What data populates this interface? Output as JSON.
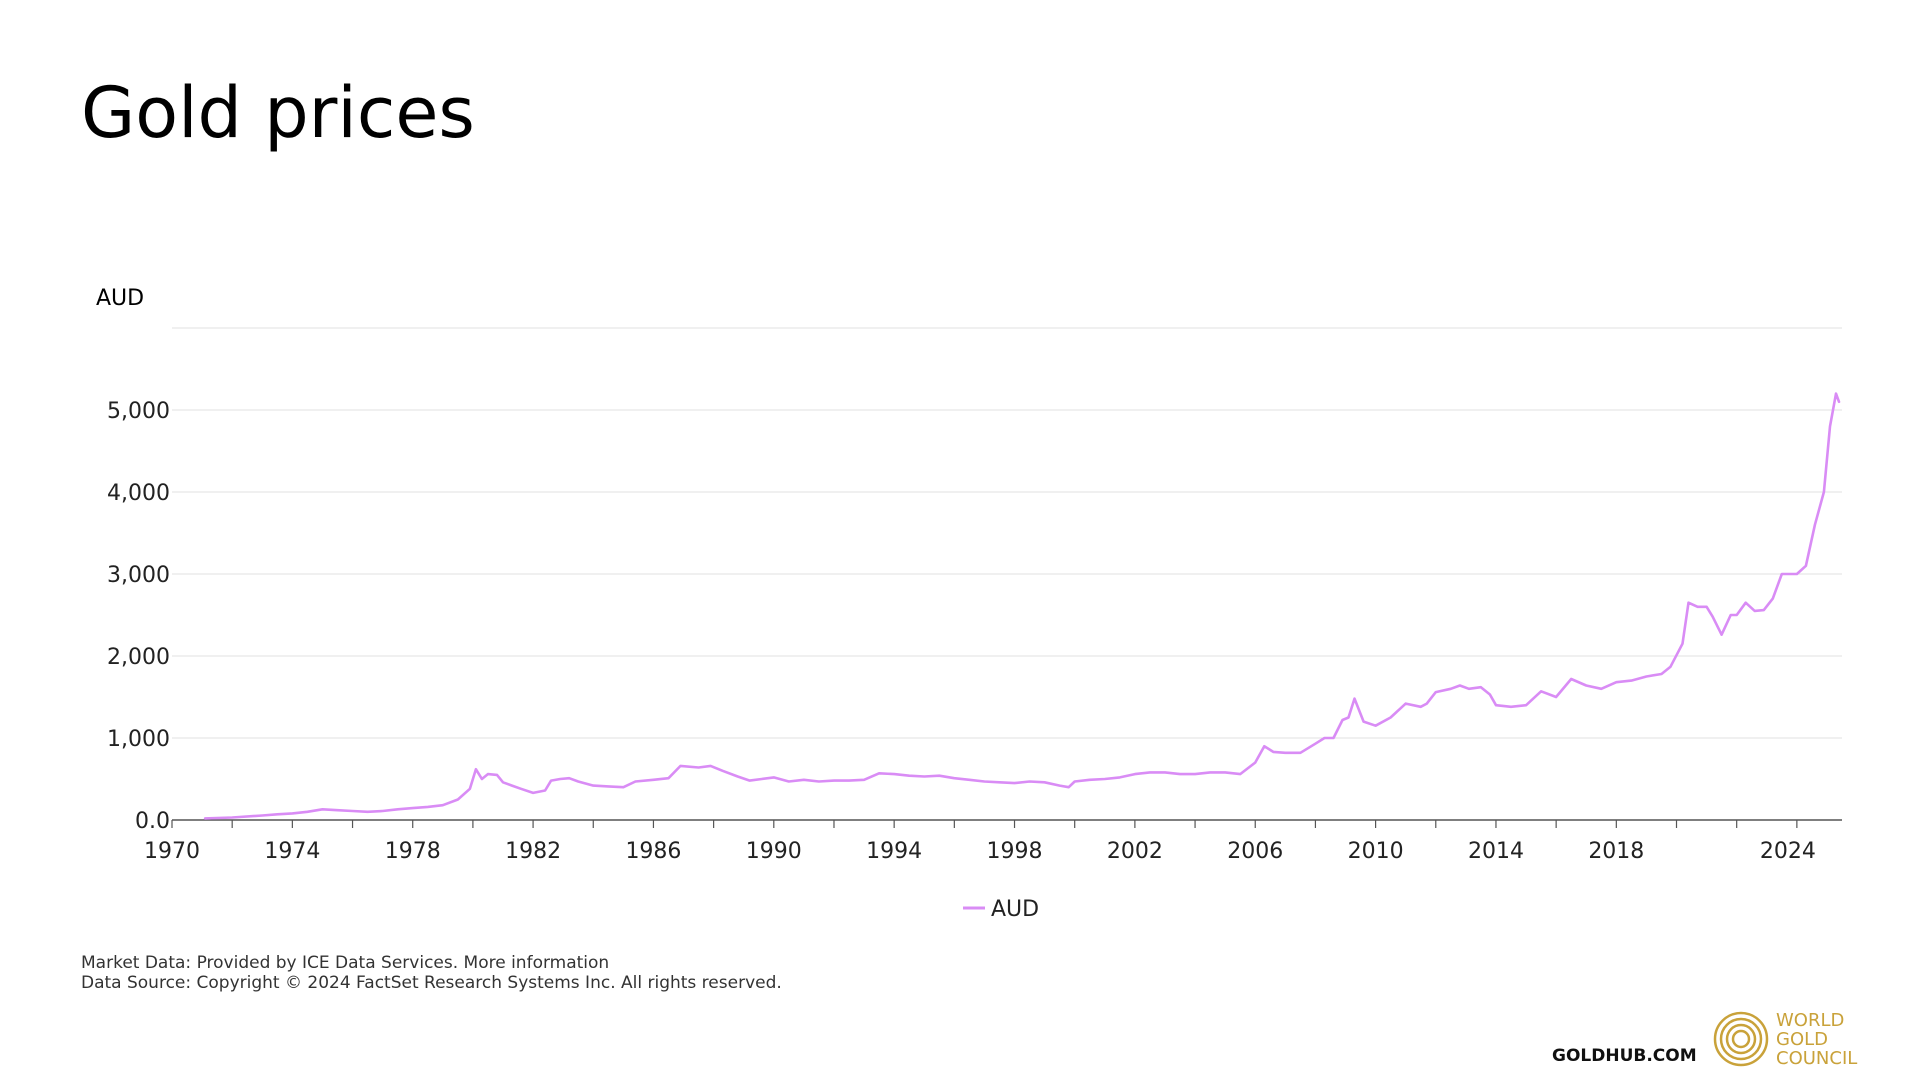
{
  "title": "Gold prices",
  "footer": {
    "line1": "Market Data: Provided by ICE Data Services. More information",
    "line2": "Data Source: Copyright © 2024 FactSet Research Systems Inc. All rights reserved."
  },
  "branding": {
    "site": "GOLDHUB.COM",
    "logo_lines": [
      "WORLD",
      "GOLD",
      "COUNCIL"
    ],
    "logo_color": "#c9a23a"
  },
  "chart_data": {
    "type": "line",
    "unit_label": "AUD",
    "xlim": [
      1970,
      2025.5
    ],
    "ylim": [
      0,
      6000
    ],
    "x_ticks": [
      "1970",
      "1974",
      "1978",
      "1982",
      "1986",
      "1990",
      "1994",
      "1998",
      "2002",
      "2006",
      "2010",
      "2014",
      "2018",
      "2024"
    ],
    "x_tick_values": [
      1970,
      1974,
      1978,
      1982,
      1986,
      1990,
      1994,
      1998,
      2002,
      2006,
      2010,
      2014,
      2018,
      2023.7
    ],
    "y_ticks": [
      "0.0",
      "1,000",
      "2,000",
      "3,000",
      "4,000",
      "5,000"
    ],
    "y_tick_values": [
      0,
      1000,
      2000,
      3000,
      4000,
      5000
    ],
    "grid": true,
    "legend_position": "bottom-center",
    "series": [
      {
        "name": "AUD",
        "color": "#d98cf5",
        "x": [
          1971.1,
          1972,
          1973,
          1973.5,
          1974,
          1974.5,
          1975,
          1975.5,
          1976,
          1976.5,
          1977,
          1977.5,
          1978,
          1978.5,
          1979,
          1979.5,
          1979.9,
          1980.1,
          1980.3,
          1980.5,
          1980.8,
          1981,
          1981.3,
          1981.6,
          1982,
          1982.4,
          1982.6,
          1982.9,
          1983.2,
          1983.5,
          1984,
          1984.5,
          1985,
          1985.4,
          1986,
          1986.5,
          1986.9,
          1987.5,
          1987.9,
          1988.3,
          1988.8,
          1989.2,
          1989.6,
          1990,
          1990.5,
          1991,
          1991.5,
          1992,
          1992.5,
          1993,
          1993.5,
          1994,
          1994.5,
          1995,
          1995.5,
          1996,
          1996.5,
          1997,
          1997.5,
          1998,
          1998.5,
          1999,
          1999.5,
          1999.8,
          2000,
          2000.5,
          2001,
          2001.5,
          2002,
          2002.5,
          2003,
          2003.5,
          2004,
          2004.5,
          2005,
          2005.5,
          2006,
          2006.3,
          2006.6,
          2007,
          2007.5,
          2008,
          2008.3,
          2008.6,
          2008.9,
          2009.1,
          2009.3,
          2009.6,
          2010,
          2010.5,
          2011,
          2011.5,
          2011.7,
          2012,
          2012.5,
          2012.8,
          2013.1,
          2013.5,
          2013.8,
          2014,
          2014.5,
          2015,
          2015.5,
          2016,
          2016.5,
          2017,
          2017.5,
          2018,
          2018.5,
          2019,
          2019.5,
          2019.8,
          2020.2,
          2020.4,
          2020.7,
          2021,
          2021.2,
          2021.5,
          2021.8,
          2022,
          2022.3,
          2022.6,
          2022.9,
          2023.2,
          2023.5,
          2023.8,
          2024,
          2024.3,
          2024.6,
          2024.9,
          2025.1,
          2025.3,
          2025.4
        ],
        "values": [
          20,
          30,
          55,
          70,
          80,
          100,
          130,
          120,
          110,
          100,
          110,
          130,
          145,
          160,
          180,
          250,
          380,
          620,
          500,
          560,
          550,
          460,
          420,
          380,
          330,
          360,
          480,
          500,
          510,
          470,
          420,
          410,
          400,
          470,
          490,
          510,
          660,
          640,
          660,
          600,
          530,
          480,
          500,
          520,
          470,
          490,
          470,
          480,
          480,
          490,
          570,
          560,
          540,
          530,
          540,
          510,
          490,
          470,
          460,
          450,
          470,
          460,
          420,
          400,
          470,
          490,
          500,
          520,
          560,
          580,
          580,
          560,
          560,
          580,
          580,
          560,
          700,
          900,
          830,
          820,
          820,
          930,
          1000,
          1000,
          1220,
          1250,
          1480,
          1200,
          1150,
          1250,
          1420,
          1380,
          1420,
          1560,
          1600,
          1640,
          1600,
          1620,
          1530,
          1400,
          1380,
          1400,
          1570,
          1500,
          1720,
          1640,
          1600,
          1680,
          1700,
          1750,
          1780,
          1870,
          2150,
          2650,
          2600,
          2600,
          2480,
          2260,
          2500,
          2500,
          2650,
          2550,
          2560,
          2700,
          3000,
          3000,
          3000,
          3100,
          3600,
          4000,
          4800,
          5200,
          5100
        ]
      }
    ]
  }
}
